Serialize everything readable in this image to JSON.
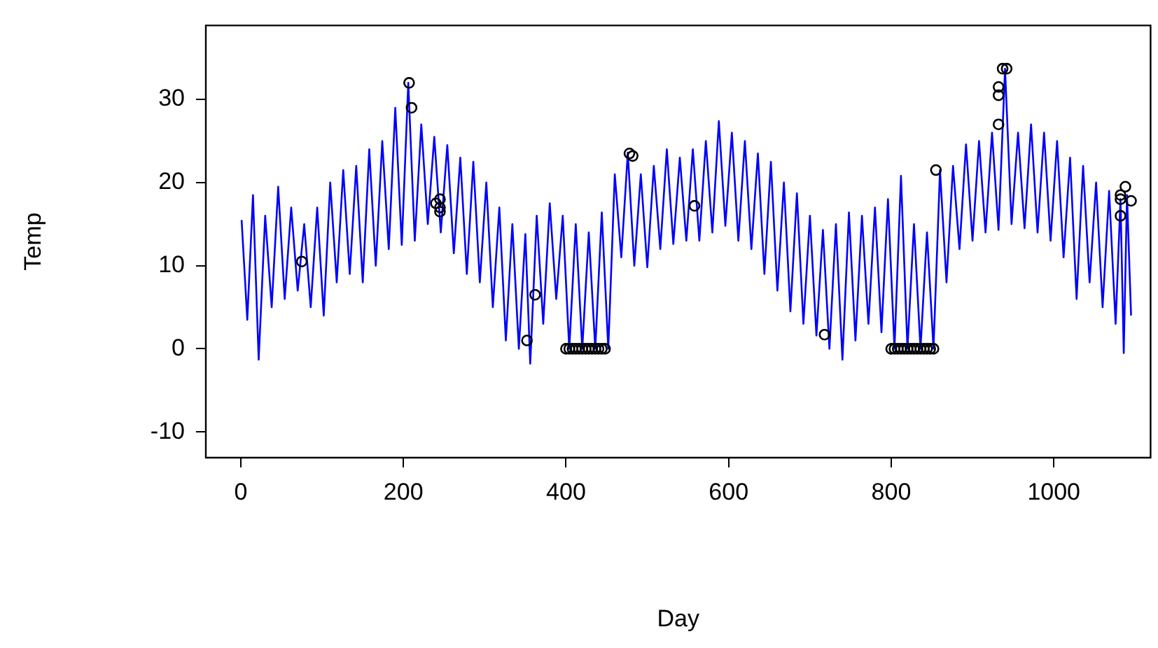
{
  "chart_data": {
    "type": "line",
    "xlabel": "Day",
    "ylabel": "Temp",
    "xlim": [
      -43,
      1119
    ],
    "ylim": [
      -13.1,
      38.9
    ],
    "xticks": [
      0,
      200,
      400,
      600,
      800,
      1000
    ],
    "yticks": [
      -10,
      0,
      10,
      20,
      30
    ],
    "grid": false,
    "legend": false,
    "series": [
      {
        "color": "#0000ff",
        "marker": "none",
        "x": [
          1,
          8,
          15,
          22,
          30,
          38,
          46,
          54,
          62,
          70,
          78,
          86,
          94,
          102,
          110,
          118,
          126,
          134,
          142,
          150,
          158,
          166,
          174,
          182,
          190,
          198,
          206,
          214,
          222,
          230,
          238,
          246,
          254,
          262,
          270,
          278,
          286,
          294,
          302,
          310,
          318,
          326,
          334,
          342,
          350,
          356,
          364,
          372,
          380,
          388,
          396,
          404,
          412,
          420,
          428,
          436,
          444,
          452,
          460,
          468,
          476,
          484,
          492,
          500,
          508,
          516,
          524,
          532,
          540,
          548,
          556,
          564,
          572,
          580,
          588,
          596,
          604,
          612,
          620,
          628,
          636,
          644,
          652,
          660,
          668,
          676,
          684,
          692,
          700,
          708,
          716,
          724,
          732,
          740,
          748,
          756,
          764,
          772,
          780,
          788,
          796,
          804,
          812,
          820,
          828,
          836,
          844,
          852,
          860,
          868,
          876,
          884,
          892,
          900,
          908,
          916,
          924,
          932,
          940,
          948,
          956,
          964,
          972,
          980,
          988,
          996,
          1004,
          1012,
          1020,
          1028,
          1036,
          1044,
          1052,
          1060,
          1068,
          1076,
          1082,
          1086,
          1090,
          1095
        ],
        "values": [
          15.5,
          3.5,
          18.5,
          -1.3,
          16,
          5,
          19.5,
          6,
          17,
          7,
          15,
          5,
          17,
          4,
          20,
          8,
          21.5,
          9,
          22,
          8,
          24,
          10,
          25,
          12,
          29,
          12.5,
          32,
          13,
          27,
          15,
          25.5,
          14,
          24.5,
          11.5,
          23,
          9,
          22.5,
          8,
          20,
          5,
          17,
          1,
          15,
          0,
          13.8,
          -1.8,
          16,
          3,
          17.5,
          6,
          16,
          0,
          15,
          0,
          14,
          0,
          16.4,
          0,
          21,
          11,
          23.6,
          10,
          21,
          9.8,
          22,
          12,
          24,
          12.6,
          23,
          13,
          24,
          13,
          25,
          14,
          27.4,
          14.8,
          26,
          13,
          25,
          12,
          23.5,
          9,
          22.5,
          7,
          20,
          4.5,
          18.7,
          3,
          16,
          1.6,
          14.3,
          0,
          15,
          -1.3,
          16.4,
          1,
          16,
          3,
          17,
          2,
          18,
          0,
          20.8,
          0,
          15,
          0,
          14,
          0,
          21.5,
          8,
          22,
          12,
          24.6,
          13,
          25,
          14,
          26,
          14.3,
          33.7,
          15,
          26,
          14.5,
          27,
          14,
          26,
          13,
          25,
          11,
          23,
          6,
          22,
          8,
          20,
          5,
          19,
          3,
          18,
          -0.5,
          18.5,
          4
        ]
      },
      {
        "type": "scatter",
        "color": "#000000",
        "marker": "circle",
        "x": [
          75,
          207,
          210,
          240,
          245,
          245,
          245,
          352,
          362,
          400,
          404,
          408,
          412,
          416,
          420,
          424,
          428,
          432,
          436,
          440,
          444,
          448,
          478,
          482,
          558,
          718,
          800,
          804,
          808,
          812,
          816,
          820,
          824,
          828,
          832,
          836,
          840,
          844,
          848,
          852,
          855,
          932,
          932,
          932,
          937,
          942,
          1082,
          1082,
          1082,
          1088,
          1095
        ],
        "values": [
          10.5,
          32,
          29,
          17.5,
          18,
          17,
          16.5,
          1,
          6.5,
          0,
          0,
          0,
          0,
          0,
          0,
          0,
          0,
          0,
          0,
          0,
          0,
          0,
          23.5,
          23.2,
          17.2,
          1.7,
          0,
          0,
          0,
          0,
          0,
          0,
          0,
          0,
          0,
          0,
          0,
          0,
          0,
          0,
          21.5,
          27,
          30.5,
          31.5,
          33.7,
          33.7,
          18,
          16,
          18.5,
          19.5,
          17.8
        ]
      }
    ]
  }
}
